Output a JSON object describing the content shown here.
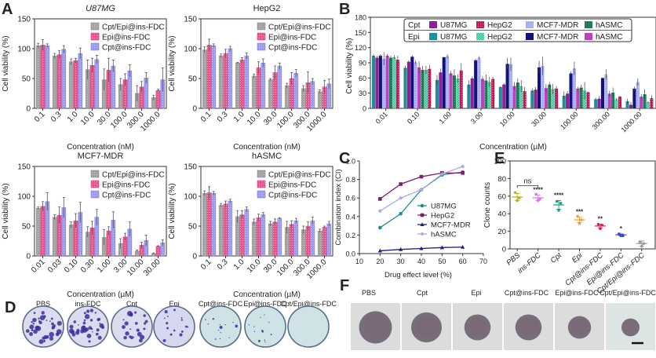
{
  "panels": {
    "A": "A",
    "B": "B",
    "C": "C",
    "D": "D",
    "E": "E",
    "F": "F"
  },
  "colors": {
    "combo": "#a3a3a3",
    "epi": "#e8558f",
    "cpt": "#9b9bf0",
    "b_cpt_u87": "#8e1f94",
    "b_cpt_hepg2": "#c2185b",
    "b_cpt_mcf7": "#a5aef2",
    "b_cpt_hasmc": "#1d7a55",
    "b_epi_u87": "#1f8e98",
    "b_epi_hepg2": "#2fc49a",
    "b_epi_mcf7": "#12127a",
    "b_epi_hasmc": "#bd3fc2",
    "c_u87": "#1f8e8e",
    "c_hepg2": "#7a1f6e",
    "c_mcf7": "#1f1f7a",
    "c_hasmc": "#a9a9e6"
  },
  "chart_data": [
    {
      "id": "A1",
      "type": "bar",
      "title": "U87MG",
      "title_italic": true,
      "xlabel": "Concentration (nM)",
      "ylabel": "Cell viability (%)",
      "ylim": [
        0,
        150
      ],
      "yticks": [
        0,
        50,
        100,
        150
      ],
      "categories": [
        "0.1",
        "0.3",
        "1.0",
        "10.0",
        "30.0",
        "100.0",
        "300.0",
        "1000.0"
      ],
      "legend": "top-right",
      "series": [
        {
          "name": "Cpt/Epi@ins-FDC",
          "values": [
            105,
            88,
            78,
            65,
            48,
            40,
            25,
            18
          ],
          "err": [
            4,
            4,
            5,
            16,
            18,
            10,
            13,
            4
          ]
        },
        {
          "name": "Epi@ins-FDC",
          "values": [
            106,
            90,
            80,
            72,
            64,
            48,
            36,
            30
          ],
          "err": [
            9,
            7,
            4,
            12,
            20,
            10,
            9,
            2
          ]
        },
        {
          "name": "Cpt@ins-FDC",
          "values": [
            105,
            99,
            92,
            82,
            71,
            63,
            51,
            48
          ],
          "err": [
            3,
            6,
            9,
            7,
            10,
            10,
            9,
            20
          ]
        }
      ]
    },
    {
      "id": "A2",
      "type": "bar",
      "title": "HepG2",
      "xlabel": "Concentration (nM)",
      "ylabel": "Cell viability (%)",
      "ylim": [
        0,
        150
      ],
      "yticks": [
        0,
        50,
        100,
        150
      ],
      "categories": [
        "0.1",
        "0.3",
        "1.0",
        "10.0",
        "30.0",
        "100.0",
        "300.0",
        "1000.0"
      ],
      "legend": "top-right",
      "series": [
        {
          "name": "Cpt/Epi@ins-FDC",
          "values": [
            98,
            88,
            76,
            54,
            48,
            38,
            33,
            28
          ],
          "err": [
            5,
            3,
            1,
            3,
            2,
            4,
            5,
            3
          ]
        },
        {
          "name": "Epi@ins-FDC",
          "values": [
            106,
            92,
            81,
            68,
            60,
            50,
            43,
            36
          ],
          "err": [
            10,
            7,
            4,
            10,
            11,
            10,
            18,
            11
          ]
        },
        {
          "name": "Cpt@ins-FDC",
          "values": [
            105,
            100,
            88,
            76,
            71,
            59,
            45,
            41
          ],
          "err": [
            3,
            4,
            5,
            7,
            5,
            6,
            5,
            8
          ]
        }
      ]
    },
    {
      "id": "A3",
      "type": "bar",
      "title": "MCF7-MDR",
      "xlabel": "Concentration (µM)",
      "ylabel": "Cell viability (%)",
      "ylim": [
        0,
        150
      ],
      "yticks": [
        0,
        50,
        100,
        150
      ],
      "categories": [
        "0.01",
        "0.03",
        "0.10",
        "0.30",
        "1.00",
        "3.00",
        "10.00",
        "30.00"
      ],
      "legend": "top-right",
      "series": [
        {
          "name": "Cpt/Epi@ins-FDC",
          "values": [
            80,
            65,
            52,
            40,
            31,
            21,
            8,
            4
          ],
          "err": [
            2,
            4,
            5,
            9,
            13,
            8,
            2,
            1
          ]
        },
        {
          "name": "Epi@ins-FDC",
          "values": [
            83,
            68,
            59,
            47,
            42,
            32,
            18,
            16
          ],
          "err": [
            8,
            14,
            12,
            11,
            7,
            6,
            5,
            1
          ]
        },
        {
          "name": "Cpt@ins-FDC",
          "values": [
            91,
            81,
            73,
            65,
            60,
            45,
            26,
            22
          ],
          "err": [
            15,
            17,
            17,
            13,
            14,
            12,
            9,
            5
          ]
        }
      ]
    },
    {
      "id": "A4",
      "type": "bar",
      "title": "hASMC",
      "xlabel": "Concentration (µM)",
      "ylabel": "Cell viability (%)",
      "ylim": [
        0,
        150
      ],
      "yticks": [
        0,
        50,
        100,
        150
      ],
      "categories": [
        "0.1",
        "0.3",
        "1.0",
        "10.0",
        "30.0",
        "100.0",
        "300.0",
        "1000.0"
      ],
      "legend": "top-right",
      "series": [
        {
          "name": "Cpt/Epi@ins-FDC",
          "values": [
            105,
            85,
            66,
            57,
            54,
            48,
            44,
            42
          ],
          "err": [
            4,
            3,
            10,
            5,
            4,
            10,
            6,
            3
          ]
        },
        {
          "name": "Epi@ins-FDC",
          "values": [
            106,
            87,
            69,
            64,
            57,
            53,
            50,
            48
          ],
          "err": [
            10,
            5,
            7,
            6,
            5,
            6,
            7,
            2
          ]
        },
        {
          "name": "Cpt@ins-FDC",
          "values": [
            105,
            92,
            78,
            69,
            63,
            59,
            59,
            54
          ],
          "err": [
            3,
            3,
            4,
            4,
            1,
            4,
            6,
            4
          ]
        }
      ]
    },
    {
      "id": "B",
      "type": "bar",
      "title": "",
      "xlabel": "Concentration (µM)",
      "ylabel": "Cell viability (%)",
      "ylim": [
        0,
        180
      ],
      "yticks": [
        0,
        30,
        60,
        90,
        120,
        150,
        180
      ],
      "categories": [
        "0.01",
        "0.10",
        "1.00",
        "3.00",
        "10.00",
        "30.00",
        "100.00",
        "300.00",
        "1000.00"
      ],
      "legend": "top",
      "legend_groups": [
        "Cpt",
        "Epi"
      ],
      "series": [
        {
          "name": "Epi U87MG",
          "group": "Epi",
          "values": [
            104,
            80,
            56,
            47,
            42,
            35,
            25,
            18,
            14
          ],
          "err": [
            3,
            4,
            10,
            8,
            2,
            4,
            8,
            3,
            5
          ]
        },
        {
          "name": "Cpt U87MG",
          "group": "Cpt",
          "values": [
            100,
            92,
            71,
            59,
            47,
            37,
            29,
            19,
            7
          ],
          "err": [
            4,
            3,
            8,
            4,
            3,
            5,
            5,
            5,
            6
          ]
        },
        {
          "name": "Epi MCF7-MDR",
          "group": "Epi",
          "values": [
            104,
            102,
            101,
            95,
            88,
            81,
            69,
            60,
            39
          ],
          "err": [
            3,
            3,
            1,
            3,
            12,
            13,
            4,
            1,
            4
          ]
        },
        {
          "name": "Cpt MCF7-MDR",
          "group": "Cpt",
          "values": [
            98,
            91,
            103,
            100,
            87,
            84,
            79,
            67,
            52
          ],
          "err": [
            13,
            4,
            4,
            3,
            13,
            18,
            13,
            10,
            7
          ]
        },
        {
          "name": "Epi hASMC",
          "group": "Epi",
          "values": [
            104,
            81,
            69,
            58,
            44,
            40,
            39,
            29,
            23
          ],
          "err": [
            3,
            12,
            5,
            5,
            8,
            8,
            4,
            6,
            5
          ]
        },
        {
          "name": "Cpt hASMC",
          "group": "Cpt",
          "values": [
            100,
            76,
            65,
            55,
            51,
            47,
            41,
            31,
            28
          ],
          "err": [
            4,
            8,
            13,
            12,
            8,
            5,
            6,
            10,
            10
          ]
        },
        {
          "name": "Epi HepG2",
          "group": "Epi",
          "values": [
            101,
            76,
            59,
            52,
            44,
            38,
            35,
            18,
            12
          ],
          "err": [
            4,
            8,
            8,
            10,
            12,
            10,
            17,
            2,
            2
          ]
        },
        {
          "name": "Cpt HepG2",
          "group": "Cpt",
          "values": [
            96,
            78,
            75,
            58,
            34,
            39,
            32,
            23,
            20
          ],
          "err": [
            8,
            8,
            14,
            4,
            8,
            5,
            1,
            2,
            6
          ]
        }
      ]
    },
    {
      "id": "C",
      "type": "line",
      "title": "",
      "xlabel": "Drug effect level (%)",
      "ylabel": "Combination index (CI)",
      "xlim": [
        10,
        70
      ],
      "ylim": [
        0,
        1.0
      ],
      "xticks": [
        10,
        20,
        30,
        40,
        50,
        60,
        70
      ],
      "yticks": [
        0.0,
        0.2,
        0.4,
        0.6,
        0.8,
        1.0
      ],
      "x": [
        20,
        30,
        40,
        50,
        60
      ],
      "legend": "center-right",
      "series": [
        {
          "name": "U87MG",
          "marker": "circle",
          "values": [
            0.28,
            0.43,
            0.69,
            0.85,
            0.88
          ]
        },
        {
          "name": "HepG2",
          "marker": "square",
          "values": [
            0.59,
            0.75,
            0.83,
            0.87,
            0.87
          ]
        },
        {
          "name": "MCF7-MDR",
          "marker": "triangle",
          "values": [
            0.03,
            0.045,
            0.055,
            0.065,
            0.07
          ]
        },
        {
          "name": "hASMC",
          "marker": "diamond",
          "values": [
            0.46,
            0.6,
            0.69,
            0.86,
            0.94
          ]
        }
      ]
    },
    {
      "id": "E",
      "type": "scatter",
      "title": "",
      "xlabel": "",
      "ylabel": "Clone counts",
      "ylim": [
        0,
        100
      ],
      "yticks": [
        0,
        20,
        40,
        60,
        80,
        100
      ],
      "categories": [
        "PBS",
        "ins-FDC",
        "Cpt",
        "Epi",
        "Cpt@ins-FDC",
        "Epi@ins-FDC",
        "Cpt/Epi@ins-FDC"
      ],
      "means": [
        59,
        58,
        50,
        33,
        26,
        16,
        6
      ],
      "sd": [
        4,
        3,
        5,
        3,
        2,
        1,
        3
      ],
      "points": [
        [
          64,
          55,
          58
        ],
        [
          62,
          55,
          57
        ],
        [
          54,
          44,
          52
        ],
        [
          37,
          29,
          33
        ],
        [
          28,
          23,
          27
        ],
        [
          17,
          15,
          15
        ],
        [
          8,
          3,
          6
        ]
      ],
      "significance": [
        "",
        "****",
        "****",
        "***",
        "**",
        "*",
        ""
      ],
      "bracket": {
        "from": "PBS",
        "to": "ins-FDC",
        "label": "ns"
      },
      "marker_colors": [
        "#b5b21a",
        "#d27ae0",
        "#1aa383",
        "#f0a03c",
        "#e0186c",
        "#3a45d9",
        "#9a9a9a"
      ]
    }
  ],
  "panel_D": {
    "labels": [
      "PBS",
      "ins-FDC",
      "Cpt",
      "Epi",
      "Cpt@ins-FDC",
      "Epi@ins-FDC",
      "Cpt/Epi@ins-FDC"
    ],
    "colony_density": [
      1.0,
      0.95,
      0.6,
      0.4,
      0.12,
      0.1,
      0.0
    ]
  },
  "panel_F": {
    "labels": [
      "PBS",
      "Cpt",
      "Epi",
      "Cpt@ins-FDC",
      "Epi@ins-FDC",
      "Cpt/Epi@ins-FDC"
    ],
    "relative_spheroid_size": [
      1.0,
      0.93,
      0.8,
      0.8,
      0.7,
      0.55
    ]
  }
}
